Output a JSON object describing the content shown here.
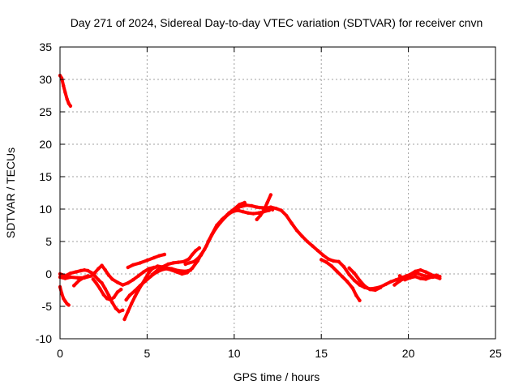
{
  "chart_data": {
    "type": "scatter",
    "title": "Day 271 of 2024, Sidereal Day-to-day VTEC variation (SDTVAR) for receiver cnvn",
    "xlabel": "GPS time / hours",
    "ylabel": "SDTVAR / TECUs",
    "xlim": [
      0,
      25
    ],
    "ylim": [
      -10,
      35
    ],
    "xticks": [
      0,
      5,
      10,
      15,
      20,
      25
    ],
    "yticks": [
      -10,
      -5,
      0,
      5,
      10,
      15,
      20,
      25,
      30,
      35
    ],
    "grid": true,
    "series": [
      {
        "name": "SDTVAR",
        "color": "#ff0000",
        "segments": [
          [
            [
              0.0,
              30.6
            ],
            [
              0.1,
              30.2
            ],
            [
              0.2,
              29.0
            ],
            [
              0.3,
              28.0
            ],
            [
              0.4,
              27.0
            ],
            [
              0.5,
              26.3
            ],
            [
              0.6,
              25.9
            ]
          ],
          [
            [
              0.0,
              -2.0
            ],
            [
              0.1,
              -3.0
            ],
            [
              0.2,
              -3.8
            ],
            [
              0.3,
              -4.2
            ],
            [
              0.4,
              -4.6
            ],
            [
              0.5,
              -4.8
            ]
          ],
          [
            [
              0.0,
              0.0
            ],
            [
              0.3,
              -0.3
            ],
            [
              0.6,
              0.1
            ],
            [
              0.9,
              0.3
            ],
            [
              1.2,
              0.5
            ],
            [
              1.4,
              0.6
            ],
            [
              1.6,
              0.5
            ],
            [
              1.8,
              0.2
            ],
            [
              2.0,
              -0.3
            ],
            [
              2.2,
              -0.9
            ],
            [
              2.4,
              -1.4
            ],
            [
              2.6,
              -2.3
            ],
            [
              2.8,
              -3.3
            ],
            [
              3.0,
              -4.4
            ],
            [
              3.2,
              -5.3
            ],
            [
              3.4,
              -5.8
            ],
            [
              3.6,
              -5.6
            ]
          ],
          [
            [
              0.0,
              -0.5
            ],
            [
              0.3,
              -0.7
            ],
            [
              0.6,
              -0.5
            ],
            [
              1.0,
              -0.6
            ],
            [
              1.4,
              -0.6
            ],
            [
              1.8,
              -0.3
            ],
            [
              2.0,
              0.2
            ],
            [
              2.2,
              0.8
            ],
            [
              2.4,
              1.3
            ],
            [
              2.6,
              0.6
            ],
            [
              2.8,
              -0.2
            ],
            [
              3.0,
              -0.8
            ],
            [
              3.3,
              -1.3
            ],
            [
              3.6,
              -1.7
            ],
            [
              3.9,
              -1.4
            ],
            [
              4.2,
              -0.9
            ],
            [
              4.5,
              -0.3
            ],
            [
              4.8,
              0.3
            ],
            [
              5.1,
              0.8
            ],
            [
              5.4,
              1.0
            ]
          ],
          [
            [
              0.8,
              -1.8
            ],
            [
              1.1,
              -1.0
            ],
            [
              1.4,
              -0.5
            ],
            [
              1.6,
              -0.3
            ]
          ],
          [
            [
              1.9,
              -0.8
            ],
            [
              2.1,
              -1.5
            ],
            [
              2.3,
              -2.3
            ],
            [
              2.5,
              -3.2
            ],
            [
              2.7,
              -3.8
            ],
            [
              2.9,
              -4.0
            ],
            [
              3.1,
              -3.6
            ],
            [
              3.3,
              -2.8
            ],
            [
              3.5,
              -2.4
            ]
          ],
          [
            [
              3.7,
              -7.0
            ],
            [
              3.9,
              -5.8
            ],
            [
              4.1,
              -4.6
            ],
            [
              4.3,
              -3.5
            ],
            [
              4.5,
              -2.5
            ],
            [
              4.7,
              -1.6
            ],
            [
              4.9,
              -0.7
            ],
            [
              5.1,
              0.2
            ],
            [
              5.3,
              0.8
            ],
            [
              5.6,
              1.2
            ],
            [
              6.0,
              1.0
            ],
            [
              6.4,
              0.8
            ],
            [
              6.8,
              0.5
            ],
            [
              7.2,
              0.4
            ],
            [
              7.5,
              0.6
            ]
          ],
          [
            [
              3.8,
              -4.0
            ],
            [
              4.0,
              -3.3
            ],
            [
              4.3,
              -2.6
            ],
            [
              4.6,
              -1.8
            ],
            [
              4.9,
              -1.1
            ],
            [
              5.2,
              -0.4
            ],
            [
              5.5,
              0.2
            ],
            [
              5.8,
              0.6
            ],
            [
              6.1,
              0.8
            ],
            [
              6.4,
              0.6
            ],
            [
              6.7,
              0.3
            ],
            [
              7.0,
              0.0
            ],
            [
              7.3,
              0.2
            ],
            [
              7.6,
              0.9
            ],
            [
              7.9,
              2.0
            ],
            [
              8.1,
              3.0
            ]
          ],
          [
            [
              3.9,
              1.0
            ],
            [
              4.2,
              1.4
            ],
            [
              4.6,
              1.7
            ],
            [
              5.0,
              2.1
            ],
            [
              5.4,
              2.5
            ],
            [
              5.7,
              2.8
            ],
            [
              6.0,
              3.0
            ]
          ],
          [
            [
              5.3,
              -0.1
            ],
            [
              5.6,
              0.6
            ],
            [
              5.9,
              1.1
            ],
            [
              6.2,
              1.5
            ],
            [
              6.5,
              1.7
            ],
            [
              6.8,
              1.8
            ],
            [
              7.1,
              1.9
            ],
            [
              7.4,
              2.3
            ],
            [
              7.6,
              3.0
            ],
            [
              7.8,
              3.6
            ],
            [
              8.0,
              4.0
            ]
          ],
          [
            [
              7.2,
              1.5
            ],
            [
              7.4,
              1.7
            ],
            [
              7.7,
              1.9
            ],
            [
              8.0,
              2.6
            ],
            [
              8.3,
              3.8
            ],
            [
              8.6,
              5.4
            ],
            [
              8.9,
              6.9
            ],
            [
              9.2,
              7.9
            ],
            [
              9.5,
              8.8
            ],
            [
              9.8,
              9.5
            ],
            [
              10.1,
              10.1
            ],
            [
              10.4,
              10.4
            ],
            [
              10.7,
              10.6
            ],
            [
              11.0,
              10.5
            ],
            [
              11.3,
              10.3
            ],
            [
              11.6,
              10.2
            ],
            [
              11.9,
              10.2
            ],
            [
              12.2,
              9.9
            ]
          ],
          [
            [
              7.8,
              2.0
            ],
            [
              8.1,
              2.9
            ],
            [
              8.4,
              4.3
            ],
            [
              8.7,
              6.0
            ],
            [
              9.0,
              7.5
            ],
            [
              9.3,
              8.4
            ],
            [
              9.6,
              9.1
            ],
            [
              9.9,
              9.6
            ],
            [
              10.2,
              9.8
            ],
            [
              10.5,
              9.6
            ],
            [
              10.8,
              9.4
            ],
            [
              11.1,
              9.3
            ],
            [
              11.4,
              9.4
            ],
            [
              11.7,
              9.6
            ],
            [
              12.0,
              9.8
            ]
          ],
          [
            [
              8.5,
              5.0
            ],
            [
              8.8,
              6.4
            ],
            [
              9.1,
              7.6
            ],
            [
              9.4,
              8.6
            ],
            [
              9.7,
              9.4
            ],
            [
              10.0,
              10.0
            ],
            [
              10.3,
              10.7
            ],
            [
              10.6,
              11.0
            ]
          ],
          [
            [
              11.3,
              8.4
            ],
            [
              11.5,
              9.0
            ],
            [
              11.7,
              9.8
            ],
            [
              11.9,
              11.0
            ],
            [
              12.1,
              12.2
            ]
          ],
          [
            [
              11.8,
              10.1
            ],
            [
              12.1,
              10.3
            ],
            [
              12.4,
              10.1
            ],
            [
              12.7,
              9.8
            ],
            [
              13.0,
              9.0
            ],
            [
              13.3,
              7.8
            ],
            [
              13.6,
              6.7
            ],
            [
              13.9,
              5.8
            ],
            [
              14.2,
              5.0
            ],
            [
              14.5,
              4.3
            ],
            [
              14.8,
              3.6
            ],
            [
              15.1,
              2.9
            ],
            [
              15.4,
              2.3
            ],
            [
              15.7,
              2.0
            ],
            [
              16.0,
              1.9
            ],
            [
              16.3,
              1.1
            ],
            [
              16.6,
              -0.1
            ],
            [
              16.9,
              -1.0
            ],
            [
              17.2,
              -1.7
            ],
            [
              17.5,
              -2.1
            ],
            [
              17.8,
              -2.3
            ],
            [
              18.1,
              -2.2
            ],
            [
              18.4,
              -2.0
            ],
            [
              18.7,
              -1.6
            ],
            [
              19.0,
              -1.2
            ],
            [
              19.3,
              -0.9
            ],
            [
              19.6,
              -0.6
            ],
            [
              19.9,
              -0.3
            ],
            [
              20.2,
              0.0
            ],
            [
              20.5,
              0.1
            ],
            [
              20.8,
              -0.2
            ],
            [
              21.1,
              -0.4
            ],
            [
              21.4,
              -0.5
            ],
            [
              21.7,
              -0.4
            ]
          ],
          [
            [
              15.0,
              2.2
            ],
            [
              15.3,
              1.8
            ],
            [
              15.6,
              1.2
            ],
            [
              15.9,
              0.4
            ],
            [
              16.2,
              -0.4
            ],
            [
              16.5,
              -1.2
            ],
            [
              16.8,
              -2.2
            ],
            [
              17.0,
              -3.3
            ],
            [
              17.2,
              -4.1
            ]
          ],
          [
            [
              16.6,
              0.9
            ],
            [
              16.9,
              0.1
            ],
            [
              17.2,
              -1.0
            ],
            [
              17.5,
              -1.9
            ],
            [
              17.8,
              -2.4
            ],
            [
              18.1,
              -2.5
            ],
            [
              18.4,
              -2.1
            ]
          ],
          [
            [
              19.2,
              -1.7
            ],
            [
              19.5,
              -1.1
            ],
            [
              19.8,
              -0.6
            ],
            [
              20.1,
              -0.1
            ],
            [
              20.4,
              0.4
            ],
            [
              20.7,
              0.6
            ],
            [
              21.0,
              0.3
            ],
            [
              21.3,
              -0.1
            ],
            [
              21.6,
              -0.5
            ],
            [
              21.8,
              -0.7
            ]
          ],
          [
            [
              19.5,
              -0.3
            ],
            [
              19.8,
              -0.9
            ],
            [
              20.1,
              -0.6
            ],
            [
              20.4,
              -0.4
            ],
            [
              20.7,
              -0.7
            ],
            [
              21.0,
              -0.8
            ],
            [
              21.3,
              -0.5
            ],
            [
              21.6,
              -0.2
            ],
            [
              21.8,
              -0.4
            ]
          ]
        ]
      }
    ]
  }
}
